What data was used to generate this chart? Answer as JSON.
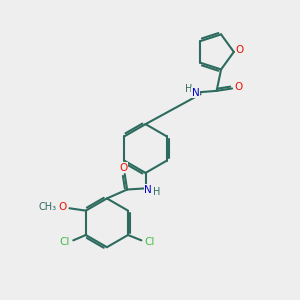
{
  "bg_color": "#eeeeee",
  "bond_color": "#2d6b5e",
  "O_color": "#ee1100",
  "N_color": "#0000cc",
  "Cl_color": "#44bb44",
  "line_width": 1.5,
  "dbo": 0.055,
  "xlim": [
    0,
    10
  ],
  "ylim": [
    0,
    10
  ]
}
